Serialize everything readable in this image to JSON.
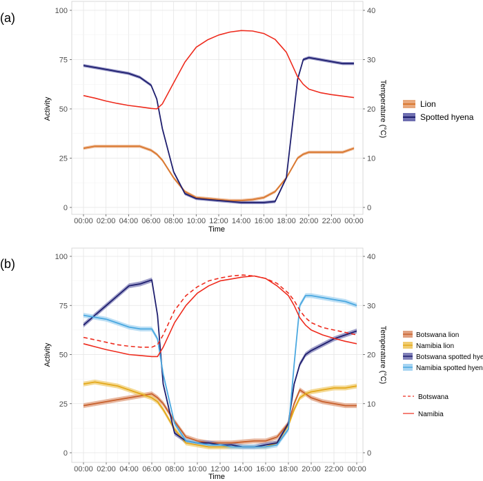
{
  "chart_data": [
    {
      "panel": "(a)",
      "type": "line",
      "xlabel": "Time",
      "ylabel": "Activity",
      "y2label": "Temperature (°C)",
      "ylim": [
        0,
        100
      ],
      "y2lim": [
        0,
        40
      ],
      "yticks": [
        0,
        25,
        50,
        75,
        100
      ],
      "y2ticks": [
        0,
        10,
        20,
        30,
        40
      ],
      "xticks": [
        "00:00",
        "02:00",
        "04:00",
        "06:00",
        "08:00",
        "10:00",
        "12:00",
        "14:00",
        "16:00",
        "18:00",
        "20:00",
        "22:00",
        "00:00"
      ],
      "hours": [
        0,
        1,
        2,
        3,
        4,
        5,
        6,
        6.5,
        7,
        8,
        9,
        10,
        11,
        12,
        13,
        14,
        15,
        16,
        17,
        18,
        18.5,
        19,
        19.5,
        20,
        21,
        22,
        23,
        24
      ],
      "series": [
        {
          "name": "Lion",
          "color": "#d9772e",
          "band": "#e8a87c",
          "values": [
            30,
            31,
            31,
            31,
            31,
            31,
            29,
            27,
            24,
            15,
            8,
            5,
            4.5,
            4,
            3.5,
            3.5,
            4,
            5,
            8,
            15,
            20,
            25,
            27,
            28,
            28,
            28,
            28,
            30
          ]
        },
        {
          "name": "Spotted hyena",
          "color": "#1e1e6e",
          "band": "#6e6eb0",
          "values": [
            72,
            71,
            70,
            69,
            68,
            66,
            62,
            55,
            40,
            18,
            7,
            4.5,
            4,
            3.5,
            3,
            2.5,
            2.5,
            2.5,
            3,
            15,
            40,
            65,
            75,
            76,
            75,
            74,
            73,
            73
          ]
        }
      ],
      "temperature": [
        {
          "name": "Temperature",
          "color": "#ee2a1c",
          "style": "solid",
          "values": [
            22.7,
            22.2,
            21.6,
            21.1,
            20.7,
            20.4,
            20.1,
            20.0,
            21.0,
            25.3,
            29.5,
            32.5,
            34.0,
            35.0,
            35.6,
            35.9,
            35.8,
            35.3,
            34.1,
            31.5,
            29.0,
            26.5,
            25.0,
            24.0,
            23.3,
            22.9,
            22.6,
            22.3
          ]
        }
      ],
      "legend": [
        "Lion",
        "Spotted hyena"
      ]
    },
    {
      "panel": "(b)",
      "type": "line",
      "xlabel": "Time",
      "ylabel": "Activity",
      "y2label": "Temperature (°C)",
      "ylim": [
        0,
        100
      ],
      "y2lim": [
        0,
        40
      ],
      "yticks": [
        0,
        25,
        50,
        75,
        100
      ],
      "y2ticks": [
        0,
        10,
        20,
        30,
        40
      ],
      "xticks": [
        "00:00",
        "02:00",
        "04:00",
        "06:00",
        "08:00",
        "10:00",
        "12:00",
        "14:00",
        "16:00",
        "18:00",
        "20:00",
        "22:00",
        "00:00"
      ],
      "hours": [
        0,
        1,
        2,
        3,
        4,
        5,
        6,
        6.5,
        7,
        8,
        9,
        10,
        11,
        12,
        13,
        14,
        15,
        16,
        17,
        18,
        18.5,
        19,
        19.5,
        20,
        21,
        22,
        23,
        24
      ],
      "series": [
        {
          "name": "Botswana lion",
          "color": "#c8602c",
          "band": "#e0a080",
          "values": [
            24,
            25,
            26,
            27,
            28,
            29,
            30,
            28,
            25,
            16,
            8,
            6,
            5,
            5,
            5,
            5.5,
            6,
            6,
            8,
            15,
            25,
            32,
            30,
            28,
            26,
            25,
            24,
            24
          ]
        },
        {
          "name": "Namibia lion",
          "color": "#e3a81a",
          "band": "#f0cc70",
          "values": [
            35,
            36,
            35,
            34,
            32,
            30,
            28,
            26,
            22,
            12,
            5,
            4,
            3,
            3,
            3,
            3,
            3,
            3,
            5,
            14,
            22,
            28,
            30,
            31,
            32,
            33,
            33,
            34
          ]
        },
        {
          "name": "Botswana spotted hyena",
          "color": "#1e1e6e",
          "band": "#8080b8",
          "values": [
            65,
            70,
            75,
            80,
            85,
            86,
            88,
            70,
            35,
            10,
            6,
            5,
            5,
            4,
            4,
            3,
            3,
            4,
            5,
            15,
            35,
            45,
            50,
            52,
            55,
            58,
            60,
            62
          ]
        },
        {
          "name": "Namibia spotted hyena",
          "color": "#4aa8e0",
          "band": "#a6d4f2",
          "values": [
            70,
            69,
            68,
            66,
            64,
            63,
            63,
            58,
            40,
            15,
            6,
            5,
            4,
            4,
            3,
            3,
            3,
            3,
            4,
            12,
            45,
            75,
            80,
            80,
            79,
            78,
            77,
            75
          ]
        }
      ],
      "temperature": [
        {
          "name": "Botswana",
          "color": "#ee2a1c",
          "style": "dashed",
          "values": [
            23.5,
            23.0,
            22.5,
            22.0,
            21.7,
            21.5,
            21.5,
            22.0,
            24.0,
            29.0,
            32.0,
            33.8,
            35.0,
            35.6,
            36.0,
            36.2,
            36.0,
            35.5,
            34.5,
            32.5,
            31.0,
            29.0,
            27.5,
            26.5,
            25.5,
            25.0,
            24.5,
            24.0
          ]
        },
        {
          "name": "Namibia",
          "color": "#ee2a1c",
          "style": "solid",
          "values": [
            22.2,
            21.6,
            21.0,
            20.5,
            20.0,
            19.8,
            19.6,
            19.6,
            21.5,
            26.5,
            30.0,
            32.5,
            34.0,
            35.0,
            35.4,
            35.8,
            36.0,
            35.5,
            34.0,
            32.0,
            30.0,
            27.5,
            26.0,
            25.0,
            24.0,
            23.3,
            22.7,
            22.2
          ]
        }
      ],
      "legend": [
        "Botswana lion",
        "Namibia lion",
        "Botswana spotted hyena",
        "Namibia spotted hyena"
      ],
      "temperature_legend": [
        "Botswana",
        "Namibia"
      ]
    }
  ]
}
